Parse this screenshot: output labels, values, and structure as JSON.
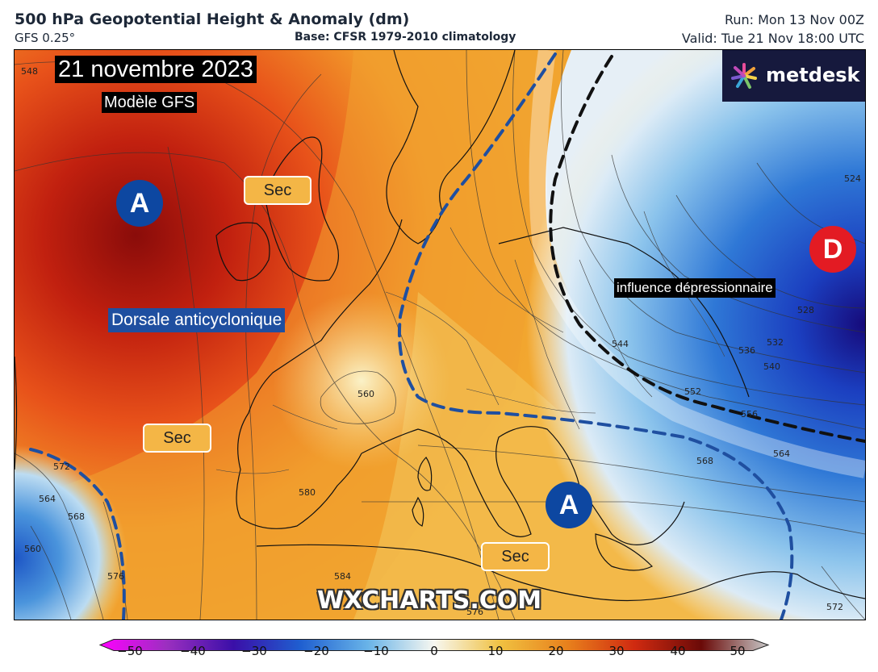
{
  "header": {
    "title": "500 hPa Geopotential Height & Anomaly (dm)",
    "model": "GFS 0.25°",
    "base": "Base: CFSR 1979-2010 climatology",
    "run": "Run: Mon 13 Nov 00Z",
    "valid": "Valid: Tue 21 Nov 18:00 UTC"
  },
  "map": {
    "date_label": "21 novembre 2023",
    "model_label": "Modèle GFS",
    "ridge_label": "Dorsale anticyclonique",
    "low_influence_label": "influence dépressionnaire",
    "dry_labels": [
      "Sec",
      "Sec",
      "Sec"
    ],
    "high_symbol": "A",
    "low_symbol": "D",
    "watermark": "WXCHARTS.COM",
    "logo_text": "metdesk",
    "contour_labels": [
      "548",
      "524",
      "528",
      "532",
      "536",
      "540",
      "544",
      "552",
      "556",
      "560",
      "564",
      "568",
      "572",
      "576",
      "580",
      "584",
      "564",
      "560",
      "568",
      "572",
      "576"
    ]
  },
  "colorbar": {
    "ticks": [
      "−50",
      "−40",
      "−30",
      "−20",
      "−10",
      "0",
      "10",
      "20",
      "30",
      "40",
      "50"
    ],
    "colors": [
      "#ff00ff",
      "#9b2fc0",
      "#3a0fa8",
      "#1f5fd0",
      "#68b3e8",
      "#f7f7f0",
      "#f0c040",
      "#e8801c",
      "#d02a10",
      "#6a0a08",
      "#c8c8c8"
    ]
  }
}
